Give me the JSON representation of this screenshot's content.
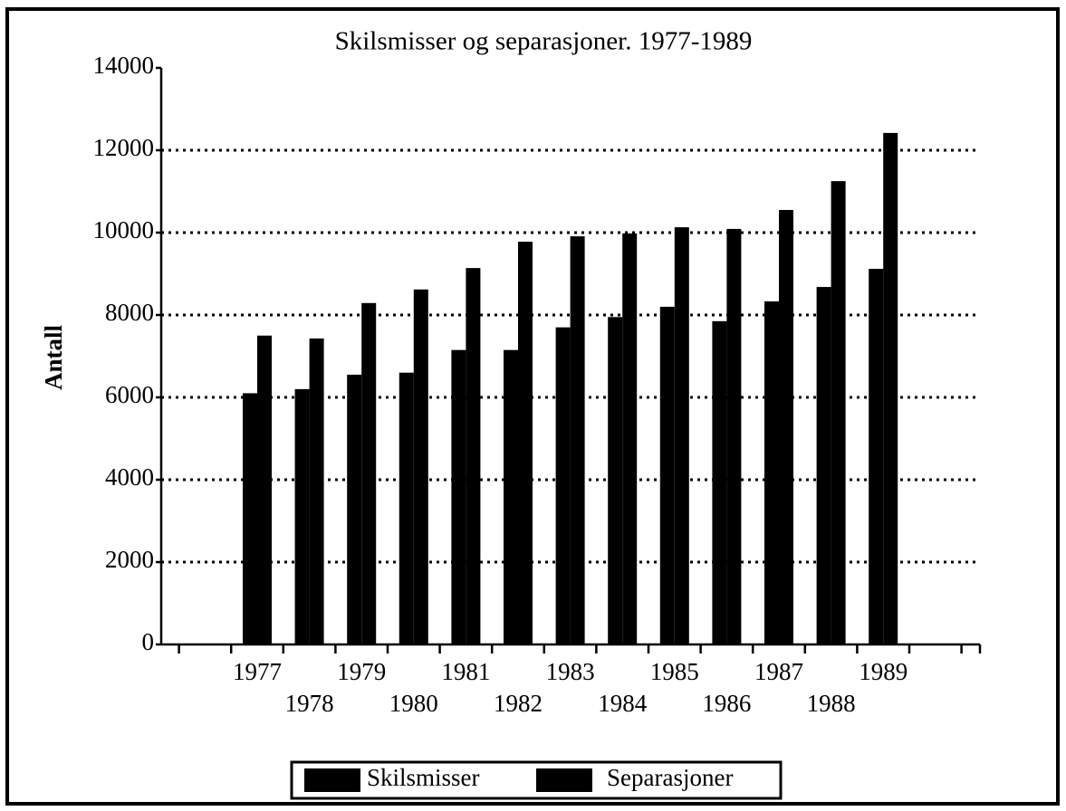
{
  "chart_data": {
    "type": "bar",
    "title": "Skilsmisser og separasjoner. 1977-1989",
    "ylabel": "Antall",
    "categories": [
      "1977",
      "1978",
      "1979",
      "1980",
      "1981",
      "1982",
      "1983",
      "1984",
      "1985",
      "1986",
      "1987",
      "1988",
      "1989"
    ],
    "series": [
      {
        "name": "Skilsmisser",
        "color": "#000000",
        "values": [
          6100,
          6200,
          6550,
          6600,
          7150,
          7150,
          7700,
          7950,
          8200,
          7850,
          8330,
          8680,
          9120
        ]
      },
      {
        "name": "Separasjoner",
        "color": "#000000",
        "values": [
          7500,
          7430,
          8290,
          8620,
          9140,
          9780,
          9910,
          9980,
          10130,
          10090,
          10550,
          11250,
          12420
        ]
      }
    ],
    "ylim": [
      0,
      14000
    ],
    "yticks": [
      0,
      2000,
      4000,
      6000,
      8000,
      10000,
      12000,
      14000
    ],
    "grid": true
  }
}
